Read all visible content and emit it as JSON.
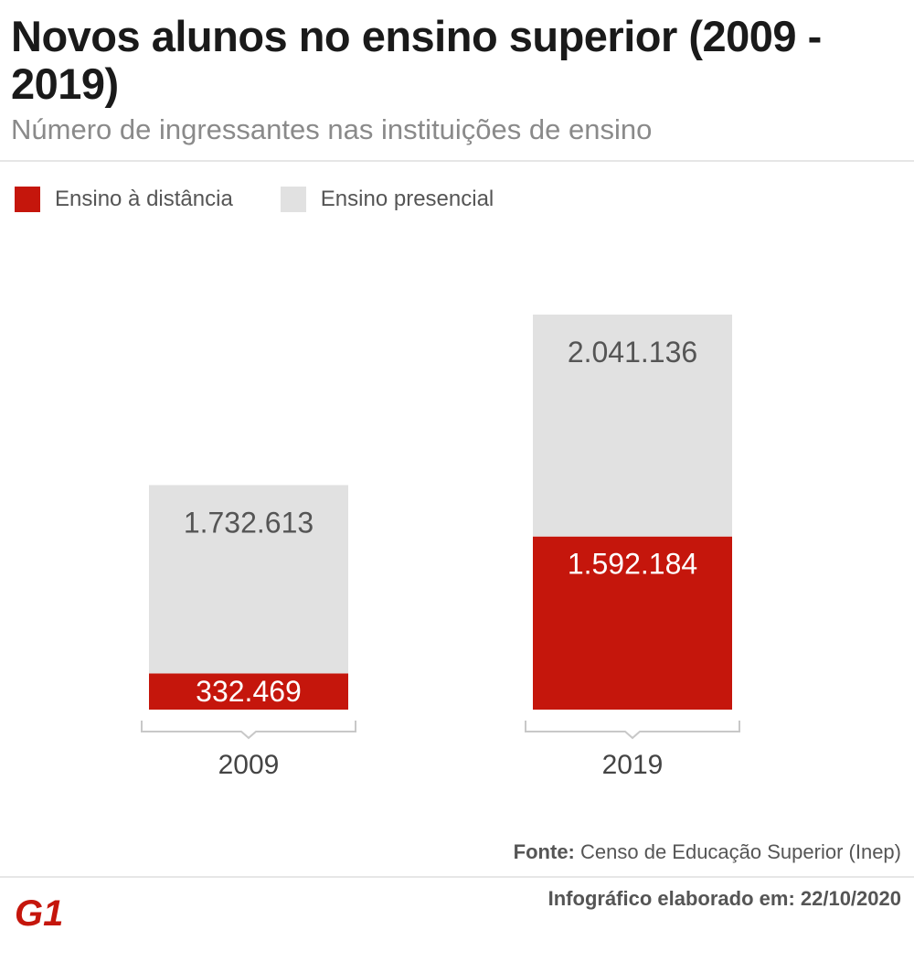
{
  "title": "Novos alunos no ensino superior (2009 - 2019)",
  "subtitle": "Número de ingressantes nas instituições de ensino",
  "legend": {
    "distance": "Ensino à distância",
    "presential": "Ensino presencial"
  },
  "colors": {
    "distance": "#c5160c",
    "presential": "#e1e1e1",
    "presential_label": "#555555",
    "distance_label": "#ffffff"
  },
  "chart_data": {
    "type": "bar",
    "stacked": true,
    "categories": [
      "2009",
      "2019"
    ],
    "series": [
      {
        "name": "Ensino à distância",
        "values": [
          332469,
          1592184
        ],
        "labels": [
          "332.469",
          "1.592.184"
        ]
      },
      {
        "name": "Ensino presencial",
        "values": [
          1732613,
          2041136
        ],
        "labels": [
          "1.732.613",
          "2.041.136"
        ]
      }
    ],
    "legend_position": "top-left",
    "grid": false
  },
  "source": {
    "label": "Fonte:",
    "text": "Censo de Educação Superior (Inep)"
  },
  "footer": {
    "date_text": "Infográfico elaborado em: 22/10/2020"
  },
  "logo": {
    "text": "G1",
    "icon": "g1-logo-icon"
  }
}
